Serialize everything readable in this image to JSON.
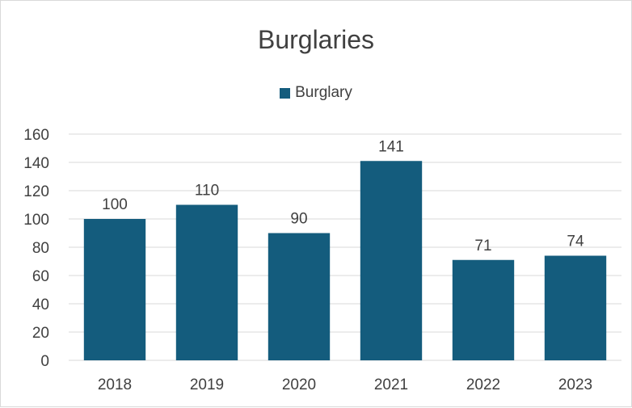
{
  "colors": {
    "bar": "#145c7d",
    "grid": "#d9d9d9",
    "text": "#404040"
  },
  "chart_data": {
    "type": "bar",
    "title": "Burglaries",
    "legend": {
      "position": "top",
      "entries": [
        "Burglary"
      ]
    },
    "categories": [
      "2018",
      "2019",
      "2020",
      "2021",
      "2022",
      "2023"
    ],
    "series": [
      {
        "name": "Burglary",
        "values": [
          100,
          110,
          90,
          141,
          71,
          74
        ]
      }
    ],
    "ylim": [
      0,
      160
    ],
    "yticks": [
      "0",
      "20",
      "40",
      "60",
      "80",
      "100",
      "120",
      "140",
      "160"
    ],
    "grid": true,
    "data_labels": true
  }
}
